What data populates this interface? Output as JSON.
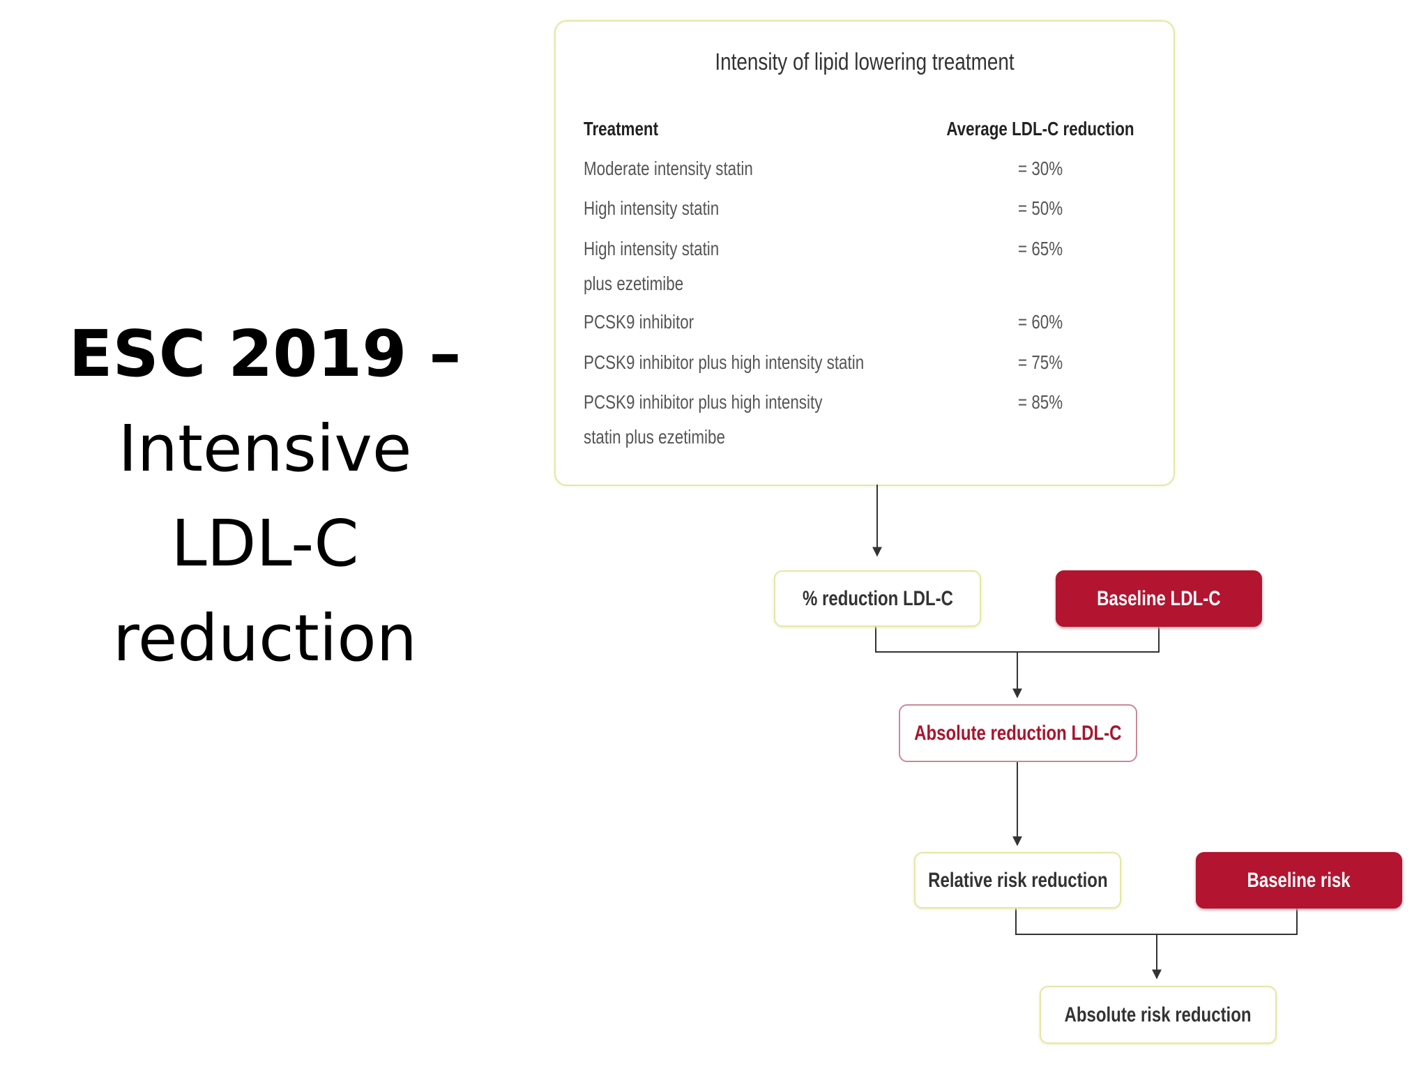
{
  "slide": {
    "title_bold": "ESC 2019 –",
    "title_rest": "Intensive LDL-C reduction"
  },
  "table": {
    "title": "Intensity of lipid lowering treatment",
    "header": [
      "Treatment",
      "Average LDL-C reduction"
    ],
    "rows": [
      [
        "Moderate intensity statin",
        "= 30%"
      ],
      [
        "High intensity statin",
        "= 50%"
      ],
      [
        "High intensity statin plus ezetimibe",
        "= 65%"
      ],
      [
        "PCSK9 inhibitor",
        "= 60%"
      ],
      [
        "PCSK9 inhibitor plus high intensity statin",
        "= 75%"
      ],
      [
        "PCSK9 inhibitor plus high intensity statin plus ezetimibe",
        "= 85%"
      ]
    ]
  },
  "nodes": [
    {
      "label": "% reduction LDL-C"
    },
    {
      "label": "Baseline LDL-C"
    },
    {
      "label": "Absolute reduction LDL-C"
    },
    {
      "label": "Relative risk reduction"
    },
    {
      "label": "Baseline risk"
    },
    {
      "label": "Absolute risk reduction"
    }
  ]
}
